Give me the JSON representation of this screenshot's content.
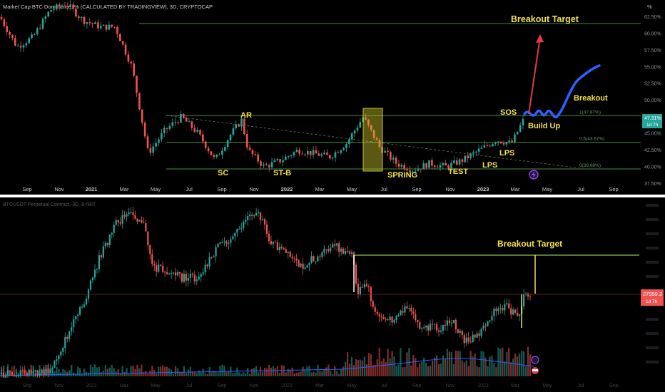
{
  "top_panel": {
    "title": "Market Cap BTC Dominance, % (CALCULATED BY TRADINGVIEW), 3D, CRYPTOCAP",
    "unit": "%",
    "price_badge": "47.31%",
    "price_badge_sub": "1d 7h"
  },
  "bottom_panel": {
    "title": "BTCUSDT Perpetual Contract, 3D, BYBIT",
    "price_badge": "27959.2",
    "price_badge_sub": "1d 7h"
  },
  "colors": {
    "background": "#000000",
    "up": "#26a69a",
    "down": "#ef5350",
    "level_line": "#3f8f3f",
    "annotation": "#f5e04a",
    "projection": "#2962ff",
    "target_arrow": "#e53945",
    "spring_box": "#c9c42a",
    "divider": "#ffffff",
    "breakout_line": "#8bc34a"
  },
  "chart_data": [
    {
      "type": "candlestick",
      "title": "Market Cap BTC Dominance, % (CALCULATED BY TRADINGVIEW), 3D, CRYPTOCAP",
      "ylabel": "%",
      "ylim": [
        37.0,
        64.5
      ],
      "y_ticks": [
        "62.50%",
        "60.00%",
        "57.50%",
        "55.00%",
        "52.50%",
        "50.00%",
        "47.50%",
        "45.00%",
        "42.50%",
        "40.00%",
        "37.50%"
      ],
      "x_ticks": [
        "Sep",
        "Nov",
        "2021",
        "Mar",
        "May",
        "Jul",
        "Sep",
        "Nov",
        "2022",
        "Mar",
        "May",
        "Jul",
        "Sep",
        "Nov",
        "2023",
        "Mar",
        "May",
        "Jul",
        "Sep"
      ],
      "series_anchor_points": [
        {
          "x": "2020-08",
          "y": 62.5
        },
        {
          "x": "2020-09",
          "y": 58.0
        },
        {
          "x": "2020-10",
          "y": 59.5
        },
        {
          "x": "2020-11",
          "y": 63.5
        },
        {
          "x": "2020-12",
          "y": 64.5
        },
        {
          "x": "2021-01",
          "y": 62.0
        },
        {
          "x": "2021-02",
          "y": 61.0
        },
        {
          "x": "2021-03",
          "y": 61.0
        },
        {
          "x": "2021-04",
          "y": 55.0
        },
        {
          "x": "2021-05",
          "y": 42.0
        },
        {
          "x": "2021-06",
          "y": 45.5
        },
        {
          "x": "2021-07",
          "y": 47.5
        },
        {
          "x": "2021-08",
          "y": 45.0
        },
        {
          "x": "2021-09",
          "y": 41.0
        },
        {
          "x": "2021-10",
          "y": 45.0
        },
        {
          "x": "2021-10-20",
          "y": 47.0
        },
        {
          "x": "2021-11",
          "y": 42.5
        },
        {
          "x": "2021-12",
          "y": 40.0
        },
        {
          "x": "2022-01",
          "y": 41.0
        },
        {
          "x": "2022-02",
          "y": 42.5
        },
        {
          "x": "2022-03",
          "y": 42.0
        },
        {
          "x": "2022-04",
          "y": 41.5
        },
        {
          "x": "2022-05",
          "y": 43.5
        },
        {
          "x": "2022-06",
          "y": 47.5
        },
        {
          "x": "2022-07",
          "y": 43.0
        },
        {
          "x": "2022-08",
          "y": 40.5
        },
        {
          "x": "2022-09",
          "y": 39.5
        },
        {
          "x": "2022-10",
          "y": 40.5
        },
        {
          "x": "2022-11",
          "y": 40.0
        },
        {
          "x": "2022-12",
          "y": 41.0
        },
        {
          "x": "2023-01",
          "y": 42.5
        },
        {
          "x": "2023-02",
          "y": 44.0
        },
        {
          "x": "2023-03",
          "y": 43.5
        },
        {
          "x": "2023-03-25",
          "y": 47.31
        }
      ],
      "levels": [
        {
          "label": "1(47.67%)",
          "value": 47.67
        },
        {
          "label": "0.5(43.67%)",
          "value": 43.67
        },
        {
          "label": "0(39.68%)",
          "value": 39.68
        },
        {
          "label": "",
          "value": 61.5
        }
      ],
      "annotations": [
        "Breakout Target",
        "Breakout",
        "Build Up",
        "SOS",
        "AR",
        "SC",
        "ST-B",
        "SPRING",
        "TEST",
        "LPS",
        "LPS"
      ]
    },
    {
      "type": "candlestick",
      "title": "BTCUSDT Perpetual Contract, 3D, BYBIT",
      "x_ticks": [
        "Sep",
        "Nov",
        "2021",
        "Mar",
        "May",
        "Jul",
        "Sep",
        "Nov",
        "2022",
        "Mar",
        "May",
        "Jul",
        "Sep",
        "Nov",
        "2023",
        "Mar",
        "May",
        "Jul",
        "Sep"
      ],
      "last_price": 27959.2,
      "annotations": [
        "Breakout Target"
      ]
    }
  ]
}
